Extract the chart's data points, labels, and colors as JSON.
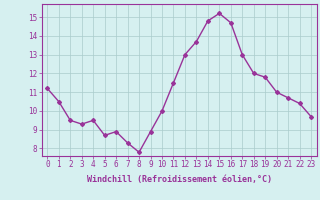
{
  "x": [
    0,
    1,
    2,
    3,
    4,
    5,
    6,
    7,
    8,
    9,
    10,
    11,
    12,
    13,
    14,
    15,
    16,
    17,
    18,
    19,
    20,
    21,
    22,
    23
  ],
  "y": [
    11.2,
    10.5,
    9.5,
    9.3,
    9.5,
    8.7,
    8.9,
    8.3,
    7.8,
    8.9,
    10.0,
    11.5,
    13.0,
    13.7,
    14.8,
    15.2,
    14.7,
    13.0,
    12.0,
    11.8,
    11.0,
    10.7,
    10.4,
    9.7
  ],
  "line_color": "#993399",
  "marker": "D",
  "marker_size": 2,
  "bg_color": "#d6f0f0",
  "grid_color": "#aacccc",
  "xlabel": "Windchill (Refroidissement éolien,°C)",
  "xlabel_color": "#993399",
  "tick_color": "#993399",
  "ylim": [
    7.6,
    15.7
  ],
  "yticks": [
    8,
    9,
    10,
    11,
    12,
    13,
    14,
    15
  ],
  "xlim": [
    -0.5,
    23.5
  ],
  "xticks": [
    0,
    1,
    2,
    3,
    4,
    5,
    6,
    7,
    8,
    9,
    10,
    11,
    12,
    13,
    14,
    15,
    16,
    17,
    18,
    19,
    20,
    21,
    22,
    23
  ],
  "spine_color": "#993399",
  "line_width": 1.0,
  "tick_fontsize": 5.5,
  "xlabel_fontsize": 6.0
}
